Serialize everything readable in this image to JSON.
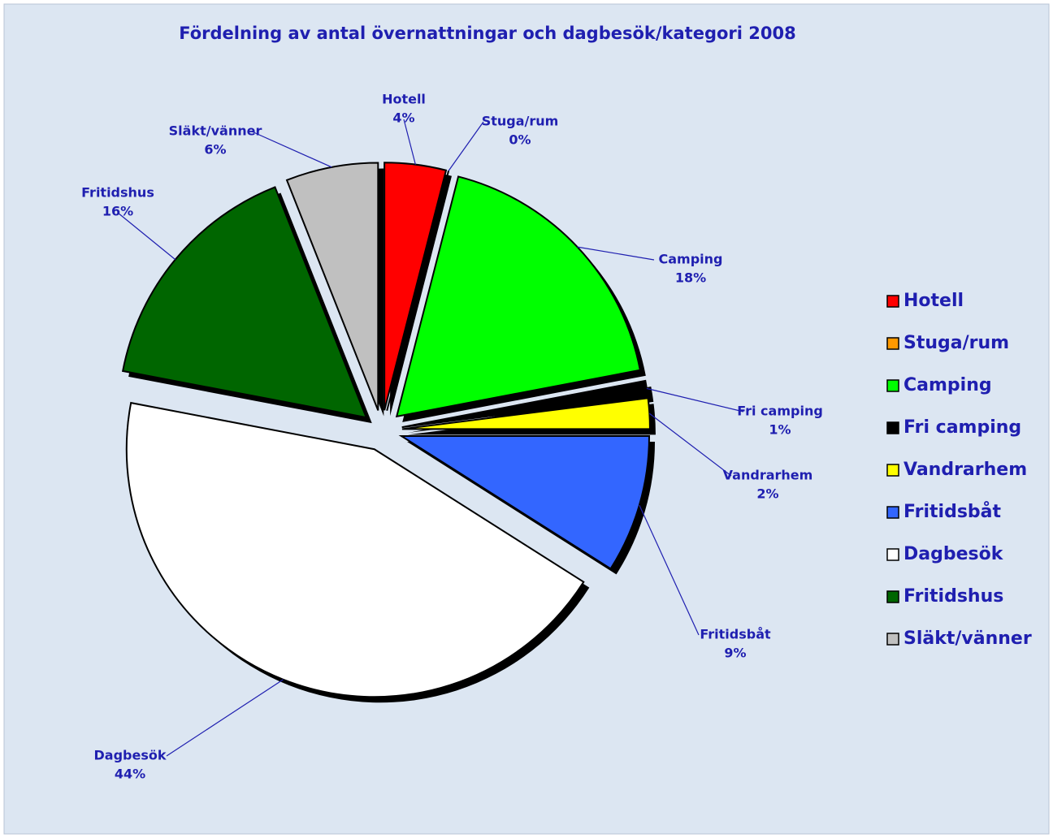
{
  "chart_data": {
    "type": "pie",
    "title": "Fördelning av antal övernattningar och dagbesök/kategori 2008",
    "categories": [
      "Hotell",
      "Stuga/rum",
      "Camping",
      "Fri camping",
      "Vandrarhem",
      "Fritidsbåt",
      "Dagbesök",
      "Fritidshus",
      "Släkt/vänner"
    ],
    "values": [
      4,
      0,
      18,
      1,
      2,
      9,
      44,
      16,
      6
    ],
    "value_labels": [
      "4%",
      "0%",
      "18%",
      "1%",
      "2%",
      "9%",
      "44%",
      "16%",
      "6%"
    ],
    "colors": [
      "#ff0000",
      "#ff9900",
      "#00ff00",
      "#000000",
      "#ffff00",
      "#3366ff",
      "#ffffff",
      "#006600",
      "#c0c0c0"
    ],
    "legend": "right"
  }
}
